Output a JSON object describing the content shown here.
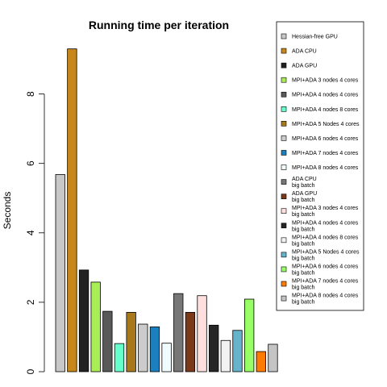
{
  "chart_data": {
    "type": "bar",
    "title": "Running time per iteration",
    "xlabel": "",
    "ylabel": "Seconds",
    "ylim": [
      0,
      10.2
    ],
    "yticks": [
      0,
      2,
      4,
      6,
      8
    ],
    "grid": false,
    "legend_position": "right",
    "series": [
      {
        "name": "Hessian-free GPU",
        "label": [
          "Hessian-free GPU"
        ],
        "value": 5.68,
        "color": "#c8c8c8"
      },
      {
        "name": "ADA CPU",
        "label": [
          "ADA CPU"
        ],
        "value": 9.3,
        "color": "#c8871a"
      },
      {
        "name": "ADA GPU",
        "label": [
          "ADA GPU"
        ],
        "value": 2.93,
        "color": "#222222"
      },
      {
        "name": "MPI+ADA 3 nodes 4 cores",
        "label": [
          "MPI+ADA 3 nodes 4 cores"
        ],
        "value": 2.58,
        "color": "#aaee55"
      },
      {
        "name": "MPI+ADA 4 nodes 4 cores",
        "label": [
          "MPI+ADA 4 nodes 4 cores"
        ],
        "value": 1.74,
        "color": "#595959"
      },
      {
        "name": "MPI+ADA 4 nodes 8 cores",
        "label": [
          "MPI+ADA 4 nodes 8 cores"
        ],
        "value": 0.81,
        "color": "#66ffcc"
      },
      {
        "name": "MPI+ADA 5 Nodes 4 cores",
        "label": [
          "MPI+ADA 5 Nodes 4 cores"
        ],
        "value": 1.71,
        "color": "#a8781a"
      },
      {
        "name": "MPI+ADA 6 nodes 4 cores",
        "label": [
          "MPI+ADA 6 nodes 4 cores"
        ],
        "value": 1.37,
        "color": "#cccccc"
      },
      {
        "name": "MPI+ADA 7 nodes 4 cores",
        "label": [
          "MPI+ADA 7 nodes 4 cores"
        ],
        "value": 1.29,
        "color": "#1a80c0"
      },
      {
        "name": "MPI+ADA 8 nodes 4 cores",
        "label": [
          "MPI+ADA 8 nodes 4 cores"
        ],
        "value": 0.82,
        "color": "#f0fcff"
      },
      {
        "name": "ADA CPU big batch",
        "label": [
          "ADA CPU",
          "big batch"
        ],
        "value": 2.25,
        "color": "#777777"
      },
      {
        "name": "ADA GPU big batch",
        "label": [
          "ADA GPU",
          "big batch"
        ],
        "value": 1.71,
        "color": "#7a3a1a"
      },
      {
        "name": "MPI+ADA 3 nodes 4 cores big batch",
        "label": [
          "MPI+ADA 3 nodes 4 cores",
          "big batch"
        ],
        "value": 2.19,
        "color": "#ffdede"
      },
      {
        "name": "MPI+ADA 4 nodes 4 cores big batch",
        "label": [
          "MPI+ADA 4 nodes 4 cores",
          "big batch"
        ],
        "value": 1.34,
        "color": "#262626"
      },
      {
        "name": "MPI+ADA 4 nodes 8 cores big batch",
        "label": [
          "MPI+ADA 4 nodes 8 cores",
          "big batch"
        ],
        "value": 0.9,
        "color": "#f2f2f2"
      },
      {
        "name": "MPI+ADA 5 Nodes 4 cores big batch",
        "label": [
          "MPI+ADA 5 Nodes 4 cores",
          "big batch"
        ],
        "value": 1.19,
        "color": "#66b3cc"
      },
      {
        "name": "MPI+ADA 6 nodes 4 cores big batch",
        "label": [
          "MPI+ADA 6 nodes 4 cores",
          "big batch"
        ],
        "value": 2.09,
        "color": "#99ff66"
      },
      {
        "name": "MPI+ADA 7 nodes 4 cores big batch",
        "label": [
          "MPI+ADA 7 nodes 4 cores",
          "big batch"
        ],
        "value": 0.58,
        "color": "#ff7a00"
      },
      {
        "name": "MPI+ADA 8 nodes 4 cores big batch",
        "label": [
          "MPI+ADA 8 nodes 4 cores",
          "big batch"
        ],
        "value": 0.79,
        "color": "#c4c4c4"
      }
    ]
  }
}
